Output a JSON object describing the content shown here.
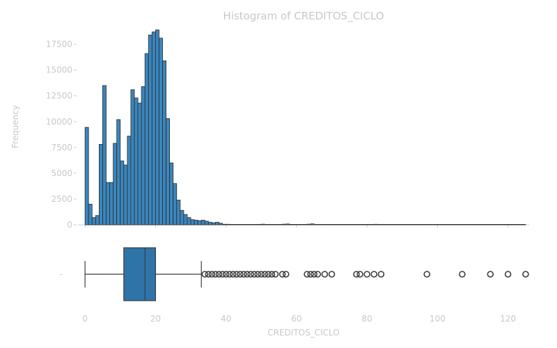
{
  "chart_data": {
    "type": "histogram+boxplot",
    "title": "Histogram of CREDITOS_CICLO",
    "histogram": {
      "ylabel": "Frequency",
      "xlim": [
        -2,
        126
      ],
      "ylim": [
        0,
        19500
      ],
      "yticks": [
        "0",
        "2500",
        "5000",
        "7500",
        "10000",
        "12500",
        "15000",
        "17500"
      ],
      "bin_start": 0,
      "bin_width": 1,
      "values": [
        9450,
        2000,
        700,
        900,
        7800,
        13500,
        4100,
        4100,
        7900,
        10200,
        6200,
        5800,
        8600,
        13100,
        12300,
        11800,
        13400,
        16600,
        18400,
        18700,
        18900,
        18100,
        15900,
        10300,
        6000,
        4000,
        2400,
        1400,
        1000,
        700,
        500,
        450,
        400,
        450,
        350,
        250,
        200,
        250,
        150,
        50,
        50,
        30,
        20,
        20,
        20,
        40,
        20,
        30,
        20,
        40,
        60,
        40,
        20,
        30,
        20,
        20,
        60,
        80,
        20,
        10,
        10,
        10,
        10,
        60,
        90,
        20,
        10,
        10,
        10,
        10,
        10,
        5,
        5,
        5,
        5,
        5,
        5,
        5,
        5,
        5,
        5,
        5,
        50,
        5,
        5,
        5,
        5,
        5,
        5,
        5,
        5,
        5,
        5,
        5,
        5,
        5,
        5,
        5,
        5,
        5,
        5,
        5,
        5,
        5,
        5,
        5,
        5,
        5,
        5,
        5,
        5,
        5,
        5,
        5,
        5,
        5,
        5,
        5,
        5,
        5,
        5,
        5,
        5,
        5,
        5
      ]
    },
    "boxplot": {
      "ytick": "-",
      "xlabel": "CREDITOS_CICLO",
      "xticks": [
        0,
        20,
        40,
        60,
        80,
        100,
        120
      ],
      "min": 0,
      "q1": 11,
      "median": 17,
      "q3": 20,
      "max": 33,
      "outliers": [
        34,
        35,
        36,
        37,
        38,
        39,
        40,
        41,
        42,
        43,
        44,
        45,
        46,
        47,
        48,
        49,
        50,
        51,
        52,
        53,
        54,
        56,
        57,
        63,
        64,
        65,
        66,
        68,
        70,
        77,
        78,
        80,
        82,
        84,
        97,
        107,
        115,
        120,
        125
      ],
      "color": "#2f74a8"
    }
  }
}
